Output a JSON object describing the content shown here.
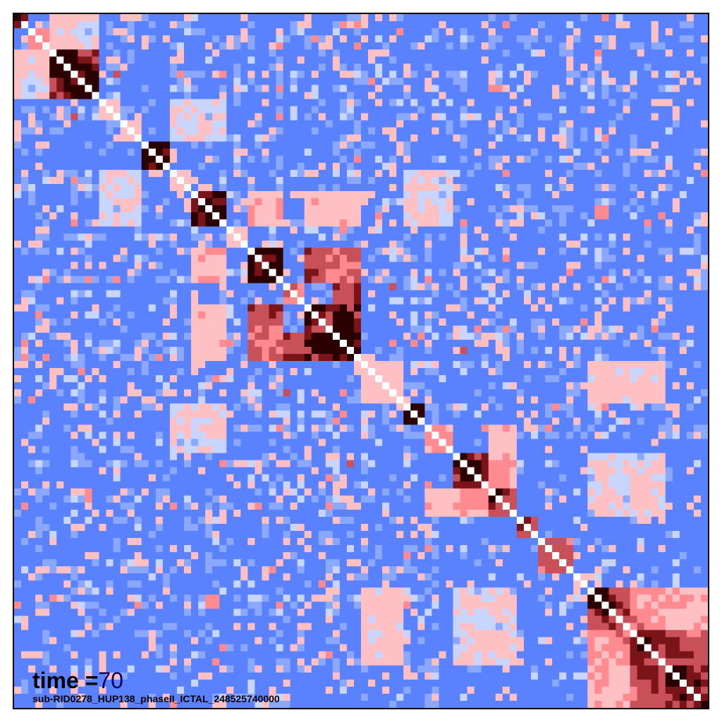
{
  "annotation": {
    "time_prefix": "time =",
    "time_value": "70"
  },
  "subtitle": "sub-RID0278_HUP138_phaseII_ICTAL_248525740000",
  "chart_data": {
    "type": "heatmap",
    "title": "",
    "xlabel": "",
    "ylabel": "",
    "n_channels": 98,
    "value_range": [
      -1,
      1
    ],
    "colormap": [
      "#5a82ff",
      "#8aa8ff",
      "#c8d6ff",
      "#ffc0c4",
      "#ff8a90",
      "#c85058",
      "#7a1418",
      "#2a0000"
    ],
    "diagonal_color": "#ffffff",
    "legend": "none",
    "grid": false,
    "blocks": [
      {
        "range": [
          0,
          2
        ],
        "value": 0.85
      },
      {
        "range": [
          2,
          5
        ],
        "value": 0.55
      },
      {
        "range": [
          5,
          9
        ],
        "value": 0.95
      },
      {
        "range": [
          9,
          12
        ],
        "value": 0.95
      },
      {
        "range": [
          12,
          15
        ],
        "value": 0.3
      },
      {
        "range": [
          15,
          18
        ],
        "value": 0.3
      },
      {
        "range": [
          18,
          22
        ],
        "value": 0.98
      },
      {
        "range": [
          22,
          25
        ],
        "value": 0.2
      },
      {
        "range": [
          25,
          30
        ],
        "value": 0.95
      },
      {
        "range": [
          30,
          33
        ],
        "value": 0.2
      },
      {
        "range": [
          33,
          38
        ],
        "value": 0.95
      },
      {
        "range": [
          38,
          41
        ],
        "value": 0.6
      },
      {
        "range": [
          41,
          45
        ],
        "value": 0.85
      },
      {
        "range": [
          45,
          49
        ],
        "value": 0.95
      },
      {
        "range": [
          49,
          55
        ],
        "value": 0.25
      },
      {
        "range": [
          55,
          58
        ],
        "value": 0.9
      },
      {
        "range": [
          58,
          62
        ],
        "value": 0.55
      },
      {
        "range": [
          62,
          67
        ],
        "value": 0.9
      },
      {
        "range": [
          67,
          71
        ],
        "value": 0.85
      },
      {
        "range": [
          71,
          74
        ],
        "value": 0.8
      },
      {
        "range": [
          74,
          79
        ],
        "value": 0.75
      },
      {
        "range": [
          79,
          81
        ],
        "value": 0.3
      },
      {
        "range": [
          81,
          87
        ],
        "value": 0.9
      },
      {
        "range": [
          87,
          92
        ],
        "value": 0.8
      },
      {
        "range": [
          92,
          98
        ],
        "value": 0.9
      }
    ],
    "cross_blocks": [
      {
        "rows": [
          5,
          9
        ],
        "cols": [
          9,
          12
        ],
        "value": 0.95
      },
      {
        "rows": [
          25,
          30
        ],
        "cols": [
          33,
          38
        ],
        "value": 0.55
      },
      {
        "rows": [
          25,
          30
        ],
        "cols": [
          41,
          45
        ],
        "value": 0.55
      },
      {
        "rows": [
          33,
          38
        ],
        "cols": [
          41,
          45
        ],
        "value": 0.85
      },
      {
        "rows": [
          33,
          38
        ],
        "cols": [
          45,
          49
        ],
        "value": 0.75
      },
      {
        "rows": [
          38,
          41
        ],
        "cols": [
          45,
          49
        ],
        "value": 0.85
      },
      {
        "rows": [
          41,
          45
        ],
        "cols": [
          45,
          49
        ],
        "value": 0.95
      },
      {
        "rows": [
          25,
          30
        ],
        "cols": [
          45,
          49
        ],
        "value": 0.5
      },
      {
        "rows": [
          58,
          62
        ],
        "cols": [
          67,
          71
        ],
        "value": 0.5
      },
      {
        "rows": [
          62,
          67
        ],
        "cols": [
          67,
          71
        ],
        "value": 0.6
      },
      {
        "rows": [
          81,
          87
        ],
        "cols": [
          87,
          92
        ],
        "value": 0.65
      },
      {
        "rows": [
          81,
          87
        ],
        "cols": [
          92,
          98
        ],
        "value": 0.6
      },
      {
        "rows": [
          87,
          92
        ],
        "cols": [
          92,
          98
        ],
        "value": 0.85
      },
      {
        "rows": [
          0,
          5
        ],
        "cols": [
          5,
          12
        ],
        "value": 0.3
      },
      {
        "rows": [
          12,
          18
        ],
        "cols": [
          22,
          30
        ],
        "value": 0.3
      },
      {
        "rows": [
          22,
          30
        ],
        "cols": [
          55,
          62
        ],
        "value": 0.3
      },
      {
        "rows": [
          49,
          55
        ],
        "cols": [
          81,
          92
        ],
        "value": 0.35
      },
      {
        "rows": [
          62,
          71
        ],
        "cols": [
          81,
          92
        ],
        "value": 0.3
      }
    ],
    "background_level": -0.35,
    "noise": 0.55,
    "seed": 278
  }
}
